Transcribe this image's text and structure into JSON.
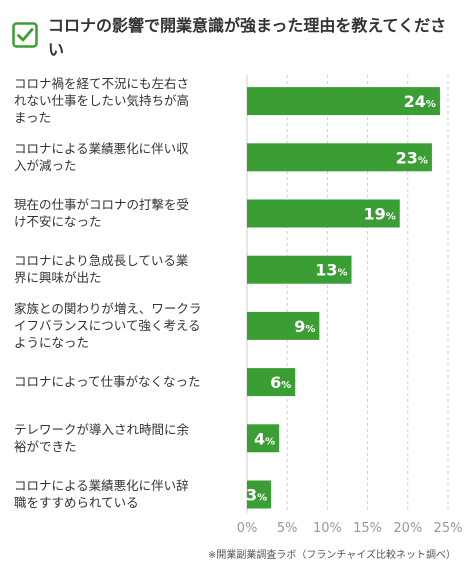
{
  "header": {
    "title": "コロナの影響で開業意識が強まった理由を教えてください",
    "icon": "checkbox-icon",
    "accent_color": "#3b9e35"
  },
  "source": "※開業副業調査ラボ（フランチャイズ比較ネット調べ）",
  "chart_data": {
    "type": "bar",
    "orientation": "horizontal",
    "categories": [
      "コロナ禍を経て不況にも左右されない仕事をしたい気持ちが高まった",
      "コロナによる業績悪化に伴い収入が減った",
      "現在の仕事がコロナの打撃を受け不安になった",
      "コロナにより急成長している業界に興味が出た",
      "家族との関わりが増え、ワークライフバランスについて強く考えるようになった",
      "コロナによって仕事がなくなった",
      "テレワークが導入され時間に余裕ができた",
      "コロナによる業績悪化に伴い辞職をすすめられている"
    ],
    "category_lines": [
      [
        "コロナ禍を経て不況にも左右さ",
        "れない仕事をしたい気持ちが高",
        "まった"
      ],
      [
        "コロナによる業績悪化に伴い収",
        "入が減った"
      ],
      [
        "現在の仕事がコロナの打撃を受",
        "け不安になった"
      ],
      [
        "コロナにより急成長している業",
        "界に興味が出た"
      ],
      [
        "家族との関わりが増え、ワークラ",
        "イフバランスについて強く考える",
        "ようになった"
      ],
      [
        "コロナによって仕事がなくなった"
      ],
      [
        "テレワークが導入され時間に余",
        "裕ができた"
      ],
      [
        "コロナによる業績悪化に伴い辞",
        "職をすすめられている"
      ]
    ],
    "values": [
      24,
      23,
      19,
      13,
      9,
      6,
      4,
      3
    ],
    "unit": "%",
    "xlim": [
      0,
      25
    ],
    "xticks": [
      0,
      5,
      10,
      15,
      20,
      25
    ],
    "tick_labels": [
      "0%",
      "5%",
      "10%",
      "15%",
      "20%",
      "25%"
    ],
    "bar_color": "#3b9e35",
    "grid": true
  }
}
